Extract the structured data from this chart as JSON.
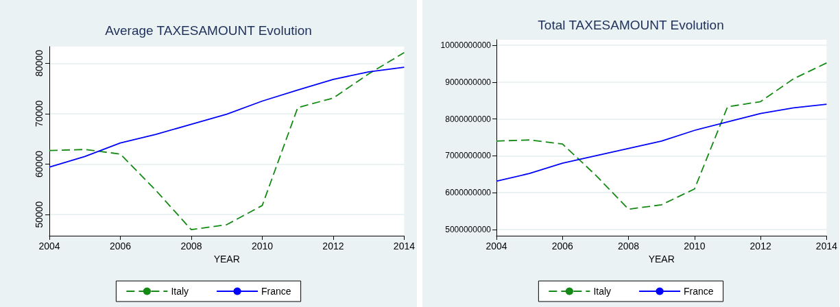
{
  "chart_data": [
    {
      "type": "line",
      "title": "Average TAXESAMOUNT Evolution",
      "xlabel": "YEAR",
      "x": [
        2004,
        2005,
        2006,
        2007,
        2008,
        2009,
        2010,
        2011,
        2012,
        2013,
        2014
      ],
      "xlim": [
        2004,
        2014
      ],
      "xticks": [
        2004,
        2006,
        2008,
        2010,
        2012,
        2014
      ],
      "ylim": [
        45800,
        83300
      ],
      "yticks": [
        50000,
        60000,
        70000,
        80000
      ],
      "grid": "y",
      "legend": "bottom",
      "marker": "none",
      "series": [
        {
          "name": "Italy",
          "color": "#138a13",
          "line_style": "dashed",
          "values": [
            62700,
            62900,
            62000,
            54800,
            47000,
            48000,
            51800,
            71200,
            73100,
            77900,
            82100
          ]
        },
        {
          "name": "France",
          "color": "#0000ff",
          "line_style": "solid",
          "values": [
            59400,
            61500,
            64200,
            65900,
            67900,
            69900,
            72500,
            74700,
            76800,
            78300,
            79200
          ]
        }
      ]
    },
    {
      "type": "line",
      "title": "Total TAXESAMOUNT Evolution",
      "xlabel": "YEAR",
      "x": [
        2004,
        2005,
        2006,
        2007,
        2008,
        2009,
        2010,
        2011,
        2012,
        2013,
        2014
      ],
      "xlim": [
        2004,
        2014
      ],
      "xticks": [
        2004,
        2006,
        2008,
        2010,
        2012,
        2014
      ],
      "ylim": [
        4830000000,
        10150000000
      ],
      "yticks": [
        5000000000,
        6000000000,
        7000000000,
        8000000000,
        9000000000,
        10000000000
      ],
      "grid": "y",
      "legend": "bottom",
      "marker": "none",
      "series": [
        {
          "name": "Italy",
          "color": "#138a13",
          "line_style": "dashed",
          "values": [
            7400000000,
            7430000000,
            7320000000,
            6480000000,
            5550000000,
            5670000000,
            6100000000,
            8330000000,
            8470000000,
            9090000000,
            9520000000
          ]
        },
        {
          "name": "France",
          "color": "#0000ff",
          "line_style": "solid",
          "values": [
            6310000000,
            6520000000,
            6800000000,
            7000000000,
            7200000000,
            7400000000,
            7690000000,
            7920000000,
            8150000000,
            8300000000,
            8400000000
          ]
        }
      ]
    }
  ]
}
